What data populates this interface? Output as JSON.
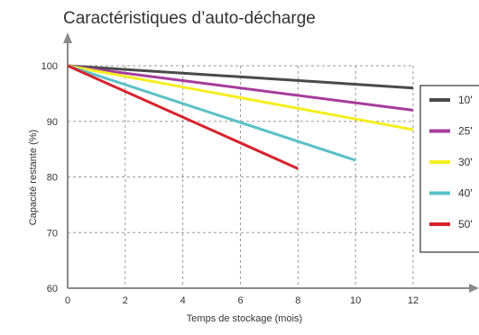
{
  "chart_data": {
    "type": "line",
    "title": "Caractéristiques d’auto-décharge",
    "xlabel": "Temps de stockage (mois)",
    "ylabel": "Capacité restante (%)",
    "xlim": [
      0,
      12
    ],
    "ylim": [
      60,
      100
    ],
    "xticks": [
      "0",
      "2",
      "4",
      "6",
      "8",
      "10",
      "12"
    ],
    "yticks": [
      "60",
      "70",
      "80",
      "90",
      "100"
    ],
    "grid": true,
    "legend_position": "right",
    "series": [
      {
        "name": "10'",
        "color": "#4a4a4a",
        "points": [
          [
            0,
            100
          ],
          [
            12,
            96
          ]
        ]
      },
      {
        "name": "25'",
        "color": "#a63c9c",
        "points": [
          [
            0,
            100
          ],
          [
            12,
            92
          ]
        ]
      },
      {
        "name": "30'",
        "color": "#f5ee1f",
        "points": [
          [
            0,
            100
          ],
          [
            12,
            88.5
          ]
        ]
      },
      {
        "name": "40'",
        "color": "#5bc0c9",
        "points": [
          [
            0,
            100
          ],
          [
            10,
            83
          ]
        ]
      },
      {
        "name": "50'",
        "color": "#d7232d",
        "points": [
          [
            0,
            100
          ],
          [
            8,
            81.5
          ]
        ]
      }
    ]
  }
}
